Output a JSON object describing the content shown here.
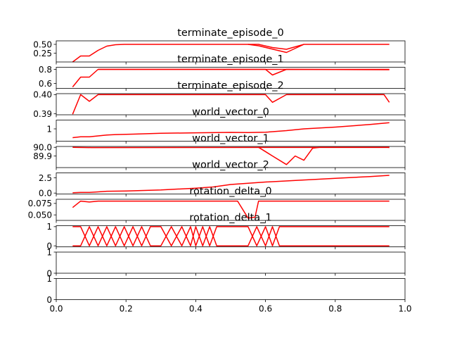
{
  "figure": {
    "background": "#ffffff",
    "line_color": "#ff0000"
  },
  "chart_data": [
    {
      "type": "line",
      "title": "terminate_episode_0",
      "ylim": [
        0.0,
        0.6
      ],
      "yticks": [
        {
          "v": 0.25,
          "label": "0.25"
        },
        {
          "v": 0.5,
          "label": "0.50"
        }
      ],
      "series": [
        {
          "x": [
            0.047,
            0.07,
            0.095,
            0.12,
            0.145,
            0.17,
            0.195,
            0.22,
            0.55,
            0.58,
            0.66,
            0.71,
            0.955
          ],
          "y": [
            0.0,
            0.17,
            0.17,
            0.33,
            0.45,
            0.49,
            0.5,
            0.5,
            0.5,
            0.46,
            0.27,
            0.5,
            0.5
          ]
        },
        {
          "x": [
            0.55,
            0.58,
            0.62,
            0.66,
            0.71
          ],
          "y": [
            0.5,
            0.5,
            0.41,
            0.36,
            0.5
          ]
        }
      ]
    },
    {
      "type": "line",
      "title": "terminate_episode_1",
      "ylim": [
        0.53,
        0.83
      ],
      "yticks": [
        {
          "v": 0.6,
          "label": "0.6"
        },
        {
          "v": 0.8,
          "label": "0.8"
        }
      ],
      "series": [
        {
          "x": [
            0.047,
            0.07,
            0.095,
            0.12,
            0.6,
            0.62,
            0.66,
            0.955
          ],
          "y": [
            0.55,
            0.69,
            0.69,
            0.8,
            0.8,
            0.72,
            0.8,
            0.795
          ]
        },
        {
          "x": [
            0.12,
            0.955
          ],
          "y": [
            0.8,
            0.8
          ]
        }
      ]
    },
    {
      "type": "line",
      "title": "terminate_episode_2",
      "ylim": [
        0.3895,
        0.4005
      ],
      "yticks": [
        {
          "v": 0.39,
          "label": "0.39"
        },
        {
          "v": 0.4,
          "label": "0.40"
        }
      ],
      "series": [
        {
          "x": [
            0.047,
            0.07,
            0.095,
            0.12,
            0.6,
            0.62,
            0.66,
            0.94,
            0.955
          ],
          "y": [
            0.3898,
            0.4,
            0.3965,
            0.4,
            0.4,
            0.396,
            0.4,
            0.4,
            0.396
          ]
        }
      ]
    },
    {
      "type": "line",
      "title": "world_vector_0",
      "ylim": [
        -0.4,
        2.0
      ],
      "yticks": [
        {
          "v": 1,
          "label": "1"
        }
      ],
      "series": [
        {
          "x": [
            0.047,
            0.07,
            0.095,
            0.12,
            0.145,
            0.17,
            0.22,
            0.3,
            0.4,
            0.5,
            0.55,
            0.6,
            0.66,
            0.71,
            0.8,
            0.9,
            0.955
          ],
          "y": [
            0.0,
            0.1,
            0.1,
            0.2,
            0.3,
            0.35,
            0.4,
            0.5,
            0.55,
            0.6,
            0.58,
            0.62,
            0.8,
            1.0,
            1.2,
            1.5,
            1.7
          ]
        }
      ]
    },
    {
      "type": "line",
      "title": "world_vector_1",
      "ylim": [
        89.765,
        90.01
      ],
      "yticks": [
        {
          "v": 89.9,
          "label": "89.9"
        },
        {
          "v": 90.0,
          "label": "90.0"
        }
      ],
      "series": [
        {
          "x": [
            0.047,
            0.1,
            0.95,
            0.955
          ],
          "y": [
            90.0,
            89.997,
            89.999,
            89.997
          ]
        },
        {
          "x": [
            0.58,
            0.6,
            0.62,
            0.66,
            0.685,
            0.71,
            0.735,
            0.755,
            0.955
          ],
          "y": [
            90.0,
            89.95,
            89.9,
            89.8,
            89.9,
            89.85,
            89.99,
            90.0,
            90.0
          ]
        }
      ]
    },
    {
      "type": "line",
      "title": "world_vector_2",
      "ylim": [
        -0.15,
        3.3
      ],
      "yticks": [
        {
          "v": 0.0,
          "label": "0.0"
        },
        {
          "v": 2.5,
          "label": "2.5"
        }
      ],
      "series": [
        {
          "x": [
            0.047,
            0.07,
            0.095,
            0.12,
            0.145,
            0.2,
            0.3,
            0.4,
            0.45,
            0.5,
            0.55,
            0.6,
            0.7,
            0.8,
            0.9,
            0.955
          ],
          "y": [
            0.05,
            0.1,
            0.1,
            0.2,
            0.3,
            0.35,
            0.5,
            0.8,
            1.0,
            1.4,
            1.6,
            1.8,
            2.1,
            2.4,
            2.7,
            2.9
          ]
        }
      ]
    },
    {
      "type": "line",
      "title": "rotation_delta_0",
      "ylim": [
        0.038,
        0.084
      ],
      "yticks": [
        {
          "v": 0.05,
          "label": "0.050"
        },
        {
          "v": 0.075,
          "label": "0.075"
        }
      ],
      "series": [
        {
          "x": [
            0.047,
            0.07,
            0.095,
            0.12,
            0.52,
            0.55,
            0.57,
            0.58,
            0.955
          ],
          "y": [
            0.066,
            0.08,
            0.078,
            0.08,
            0.08,
            0.043,
            0.045,
            0.08,
            0.08
          ]
        }
      ]
    },
    {
      "type": "line",
      "title": "rotation_delta_1",
      "ylim": [
        -0.05,
        1.05
      ],
      "yticks": [
        {
          "v": 0,
          "label": "0"
        },
        {
          "v": 1,
          "label": "1"
        }
      ],
      "series": [
        {
          "x": [
            0.047,
            0.07,
            0.095,
            0.12,
            0.145,
            0.17,
            0.195,
            0.22,
            0.245,
            0.27,
            0.3,
            0.33,
            0.36,
            0.385,
            0.4,
            0.42,
            0.44,
            0.46,
            0.55,
            0.575,
            0.6,
            0.62,
            0.64,
            0.955
          ],
          "y": [
            1,
            1,
            0,
            1,
            0,
            1,
            0,
            1,
            0,
            1,
            1,
            0,
            1,
            0,
            1,
            0,
            1,
            0,
            0,
            1,
            0,
            1,
            0,
            0
          ]
        },
        {
          "x": [
            0.047,
            0.07,
            0.095,
            0.12,
            0.145,
            0.17,
            0.195,
            0.22,
            0.245,
            0.27,
            0.3,
            0.33,
            0.36,
            0.385,
            0.4,
            0.42,
            0.44,
            0.46,
            0.55,
            0.575,
            0.6,
            0.62,
            0.64,
            0.955
          ],
          "y": [
            0,
            0,
            1,
            0,
            1,
            0,
            1,
            0,
            1,
            0,
            0,
            1,
            0,
            1,
            0,
            1,
            0,
            1,
            1,
            0,
            1,
            0,
            1,
            1
          ]
        }
      ]
    },
    {
      "type": "line",
      "title": "",
      "ylim": [
        0,
        1
      ],
      "yticks": [
        {
          "v": 0,
          "label": "0"
        },
        {
          "v": 1,
          "label": "1"
        }
      ],
      "series": []
    },
    {
      "type": "line",
      "title": "",
      "ylim": [
        0,
        1
      ],
      "yticks": [
        {
          "v": 0,
          "label": "0"
        },
        {
          "v": 1,
          "label": "1"
        }
      ],
      "xticks": [
        {
          "v": 0.0,
          "label": "0.0"
        },
        {
          "v": 0.2,
          "label": "0.2"
        },
        {
          "v": 0.4,
          "label": "0.4"
        },
        {
          "v": 0.6,
          "label": "0.6"
        },
        {
          "v": 0.8,
          "label": "0.8"
        },
        {
          "v": 1.0,
          "label": "1.0"
        }
      ],
      "series": []
    }
  ]
}
